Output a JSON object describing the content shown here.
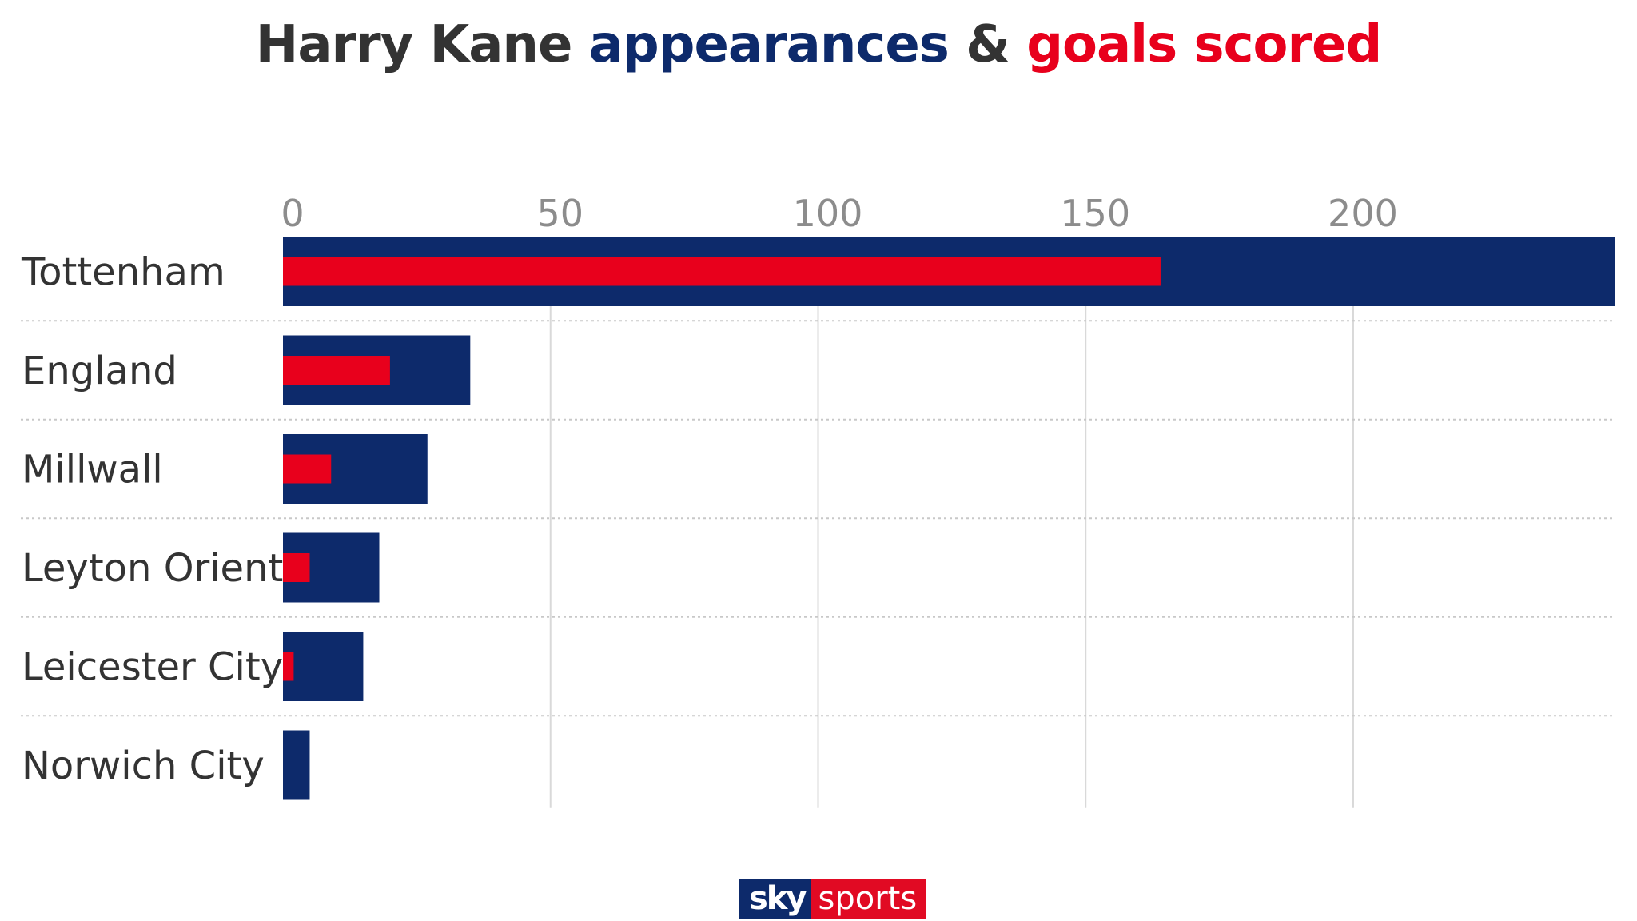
{
  "title": {
    "prefix": "Harry Kane ",
    "appearances": "appearances",
    "amp": " & ",
    "goals": "goals scored"
  },
  "colors": {
    "title_text": "#333333",
    "appearances": "#0d2a6b",
    "goals": "#e8001c"
  },
  "chart_data": {
    "type": "bar",
    "orientation": "horizontal",
    "categories": [
      "Tottenham",
      "England",
      "Millwall",
      "Leyton Orient",
      "Leicester City",
      "Norwich City"
    ],
    "series": [
      {
        "name": "appearances",
        "values": [
          249,
          35,
          27,
          18,
          15,
          5
        ]
      },
      {
        "name": "goals scored",
        "values": [
          164,
          20,
          9,
          5,
          2,
          0
        ]
      }
    ],
    "x_ticks": [
      "0",
      "50",
      "100",
      "150",
      "200"
    ],
    "xlim": [
      0,
      249
    ],
    "grid": true,
    "axis_position": "top",
    "legend": "title"
  },
  "logo": {
    "sky": "sky",
    "sports": "sports"
  }
}
